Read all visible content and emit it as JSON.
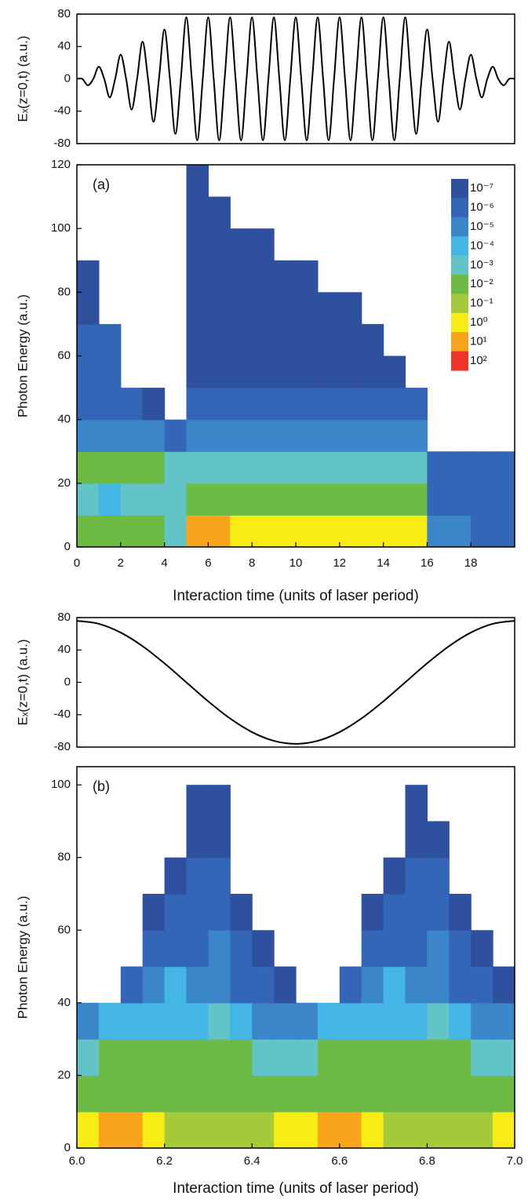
{
  "chart_data": [
    {
      "type": "line",
      "y_label": "Eₓ(z=0,t) (a.u.)",
      "color": "#000000",
      "x": [
        0,
        0.25,
        0.5,
        0.75,
        1,
        1.25,
        1.5,
        1.75,
        2,
        2.25,
        2.5,
        2.75,
        3,
        3.25,
        3.5,
        3.75,
        4,
        4.25,
        4.5,
        4.75,
        5,
        5.25,
        5.5,
        5.75,
        6,
        6.25,
        6.5,
        6.75,
        7,
        7.25,
        7.5,
        7.75,
        8,
        8.25,
        8.5,
        8.75,
        9,
        9.25,
        9.5,
        9.75,
        10,
        10.25,
        10.5,
        10.75,
        11,
        11.25,
        11.5,
        11.75,
        12,
        12.25,
        12.5,
        12.75,
        13,
        13.25,
        13.5,
        13.75,
        14,
        14.25,
        14.5,
        14.75,
        15,
        15.25,
        15.5,
        15.75,
        16,
        16.25,
        16.5,
        16.75,
        17,
        17.25,
        17.5,
        17.75,
        18,
        18.25,
        18.5,
        18.75,
        19,
        19.25,
        19.5,
        19.75,
        20
      ],
      "values": [
        0,
        0,
        -8,
        0,
        15,
        0,
        -23,
        0,
        30,
        0,
        -38,
        0,
        46,
        0,
        -53,
        0,
        61,
        0,
        -68,
        0,
        76,
        0,
        -76,
        0,
        76,
        0,
        -76,
        0,
        76,
        0,
        -76,
        0,
        76,
        0,
        -76,
        0,
        76,
        0,
        -76,
        0,
        76,
        0,
        -76,
        0,
        76,
        0,
        -76,
        0,
        76,
        0,
        -76,
        0,
        76,
        0,
        -76,
        0,
        76,
        0,
        -76,
        0,
        76,
        0,
        -68,
        0,
        61,
        0,
        -53,
        0,
        46,
        0,
        -38,
        0,
        30,
        0,
        -23,
        0,
        15,
        0,
        -8,
        0,
        0
      ],
      "xlim": [
        0,
        20
      ],
      "ylim": [
        -80,
        80
      ],
      "yticks": [
        -80,
        -40,
        0,
        40,
        80
      ]
    },
    {
      "type": "heatmap",
      "annotation": "(a)",
      "y_label": "Photon Energy (a.u.)",
      "x_label": "Interaction time (units of laser period)",
      "xlim": [
        0,
        20
      ],
      "ylim": [
        0,
        120
      ],
      "xticks": [
        0,
        2,
        4,
        6,
        8,
        10,
        12,
        14,
        16,
        18
      ],
      "yticks": [
        0,
        20,
        40,
        60,
        80,
        100,
        120
      ],
      "x_bins": [
        0,
        1,
        2,
        3,
        4,
        5,
        6,
        7,
        8,
        9,
        10,
        11,
        12,
        13,
        14,
        15,
        16,
        17,
        18,
        19,
        20
      ],
      "y_bins": [
        0,
        10,
        20,
        30,
        40,
        50,
        60,
        70,
        80,
        90,
        100,
        110,
        120
      ],
      "z": [
        [
          0.01,
          0.01,
          0.01,
          0.01,
          0.001,
          10,
          10,
          1,
          1,
          1,
          1,
          1,
          1,
          1,
          1,
          1,
          1e-05,
          1e-05,
          1e-06,
          1e-06
        ],
        [
          0.001,
          0.0001,
          0.001,
          0.001,
          0.001,
          0.01,
          0.01,
          0.01,
          0.01,
          0.01,
          0.01,
          0.01,
          0.01,
          0.01,
          0.01,
          0.01,
          1e-06,
          1e-06,
          1e-06,
          1e-06
        ],
        [
          0.01,
          0.01,
          0.01,
          0.01,
          0.001,
          0.001,
          0.001,
          0.001,
          0.001,
          0.001,
          0.001,
          0.001,
          0.001,
          0.001,
          0.001,
          0.001,
          1e-06,
          1e-06,
          1e-06,
          1e-06
        ],
        [
          1e-05,
          1e-05,
          1e-05,
          1e-05,
          1e-06,
          1e-05,
          1e-05,
          1e-05,
          1e-05,
          1e-05,
          1e-05,
          1e-05,
          1e-05,
          1e-05,
          1e-05,
          1e-05,
          null,
          null,
          null,
          null
        ],
        [
          1e-06,
          1e-06,
          1e-06,
          1e-07,
          null,
          1e-06,
          1e-06,
          1e-06,
          1e-06,
          1e-06,
          1e-06,
          1e-06,
          1e-06,
          1e-06,
          1e-06,
          1e-06,
          null,
          null,
          null,
          null
        ],
        [
          1e-06,
          1e-06,
          null,
          null,
          null,
          1e-07,
          1e-07,
          1e-07,
          1e-07,
          1e-07,
          1e-07,
          1e-07,
          1e-07,
          1e-07,
          1e-07,
          null,
          null,
          null,
          null,
          null
        ],
        [
          1e-06,
          1e-06,
          null,
          null,
          null,
          1e-07,
          1e-07,
          1e-07,
          1e-07,
          1e-07,
          1e-07,
          1e-07,
          1e-07,
          1e-07,
          null,
          null,
          null,
          null,
          null,
          null
        ],
        [
          1e-07,
          null,
          null,
          null,
          null,
          1e-07,
          1e-07,
          1e-07,
          1e-07,
          1e-07,
          1e-07,
          1e-07,
          1e-07,
          null,
          null,
          null,
          null,
          null,
          null,
          null
        ],
        [
          1e-07,
          null,
          null,
          null,
          null,
          1e-07,
          1e-07,
          1e-07,
          1e-07,
          1e-07,
          1e-07,
          null,
          null,
          null,
          null,
          null,
          null,
          null,
          null,
          null
        ],
        [
          null,
          null,
          null,
          null,
          null,
          1e-07,
          1e-07,
          1e-07,
          1e-07,
          null,
          null,
          null,
          null,
          null,
          null,
          null,
          null,
          null,
          null,
          null
        ],
        [
          null,
          null,
          null,
          null,
          null,
          1e-07,
          1e-07,
          null,
          null,
          null,
          null,
          null,
          null,
          null,
          null,
          null,
          null,
          null,
          null,
          null
        ],
        [
          null,
          null,
          null,
          null,
          null,
          1e-07,
          null,
          null,
          null,
          null,
          null,
          null,
          null,
          null,
          null,
          null,
          null,
          null,
          null,
          null
        ]
      ],
      "color_levels": [
        {
          "value": 1e-07,
          "label": "10⁻⁷"
        },
        {
          "value": 1e-06,
          "label": "10⁻⁶"
        },
        {
          "value": 1e-05,
          "label": "10⁻⁵"
        },
        {
          "value": 0.0001,
          "label": "10⁻⁴"
        },
        {
          "value": 0.001,
          "label": "10⁻³"
        },
        {
          "value": 0.01,
          "label": "10⁻²"
        },
        {
          "value": 0.1,
          "label": "10⁻¹"
        },
        {
          "value": 1,
          "label": "10⁰"
        },
        {
          "value": 10,
          "label": "10¹"
        },
        {
          "value": 100,
          "label": "10²"
        }
      ],
      "colors": [
        "#2f4f9f",
        "#3466b8",
        "#3a86c8",
        "#44b6e6",
        "#62c4c6",
        "#6dbb45",
        "#a4c93a",
        "#f7ec13",
        "#f8a51b",
        "#ee3424"
      ],
      "colorbar": true
    },
    {
      "type": "line",
      "y_label": "Eₓ(z=0,t) (a.u.)",
      "color": "#000000",
      "x": [
        6,
        6.05,
        6.1,
        6.15,
        6.2,
        6.25,
        6.3,
        6.35,
        6.4,
        6.45,
        6.5,
        6.55,
        6.6,
        6.65,
        6.7,
        6.75,
        6.8,
        6.85,
        6.9,
        6.95,
        7
      ],
      "values": [
        76,
        72.3,
        61.5,
        44.7,
        23.5,
        0,
        -23.5,
        -44.7,
        -61.5,
        -72.3,
        -76,
        -72.3,
        -61.5,
        -44.7,
        -23.5,
        0,
        23.5,
        44.7,
        61.5,
        72.3,
        76
      ],
      "xlim": [
        6,
        7
      ],
      "ylim": [
        -80,
        80
      ],
      "yticks": [
        -80,
        -40,
        0,
        40,
        80
      ]
    },
    {
      "type": "heatmap",
      "annotation": "(b)",
      "y_label": "Photon Energy (a.u.)",
      "x_label": "Interaction time (units of laser period)",
      "xlim": [
        6,
        7
      ],
      "ylim": [
        0,
        105
      ],
      "xticks": [
        {
          "value": 6,
          "label": "6.0"
        },
        {
          "value": 6.2,
          "label": "6.2"
        },
        {
          "value": 6.4,
          "label": "6.4"
        },
        {
          "value": 6.6,
          "label": "6.6"
        },
        {
          "value": 6.8,
          "label": "6.8"
        },
        {
          "value": 7,
          "label": "7.0"
        }
      ],
      "yticks": [
        0,
        20,
        40,
        60,
        80,
        100
      ],
      "x_bins": [
        6,
        6.05,
        6.1,
        6.15,
        6.2,
        6.25,
        6.3,
        6.35,
        6.4,
        6.45,
        6.5,
        6.55,
        6.6,
        6.65,
        6.7,
        6.75,
        6.8,
        6.85,
        6.9,
        6.95,
        7
      ],
      "y_bins": [
        0,
        10,
        20,
        30,
        40,
        50,
        60,
        70,
        80,
        90,
        100
      ],
      "z": [
        [
          1,
          10,
          10,
          1,
          0.1,
          0.1,
          0.1,
          0.1,
          0.1,
          1,
          1,
          10,
          10,
          1,
          0.1,
          0.1,
          0.1,
          0.1,
          0.1,
          1
        ],
        [
          0.01,
          0.01,
          0.01,
          0.01,
          0.01,
          0.01,
          0.01,
          0.01,
          0.01,
          0.01,
          0.01,
          0.01,
          0.01,
          0.01,
          0.01,
          0.01,
          0.01,
          0.01,
          0.01,
          0.01
        ],
        [
          0.001,
          0.01,
          0.01,
          0.01,
          0.01,
          0.01,
          0.01,
          0.01,
          0.001,
          0.001,
          0.001,
          0.01,
          0.01,
          0.01,
          0.01,
          0.01,
          0.01,
          0.01,
          0.001,
          0.001
        ],
        [
          1e-05,
          0.0001,
          0.0001,
          0.0001,
          0.0001,
          0.0001,
          0.001,
          0.0001,
          1e-05,
          1e-05,
          1e-05,
          0.0001,
          0.0001,
          0.0001,
          0.0001,
          0.0001,
          0.001,
          0.0001,
          1e-05,
          1e-05
        ],
        [
          null,
          null,
          1e-06,
          1e-05,
          0.0001,
          1e-05,
          1e-05,
          1e-06,
          1e-06,
          1e-07,
          null,
          null,
          1e-06,
          1e-05,
          0.0001,
          1e-05,
          1e-05,
          1e-06,
          1e-06,
          1e-07
        ],
        [
          null,
          null,
          null,
          1e-06,
          1e-06,
          1e-06,
          1e-05,
          1e-06,
          1e-07,
          null,
          null,
          null,
          null,
          1e-06,
          1e-06,
          1e-06,
          1e-05,
          1e-06,
          1e-07,
          null
        ],
        [
          null,
          null,
          null,
          1e-07,
          1e-06,
          1e-06,
          1e-06,
          1e-07,
          null,
          null,
          null,
          null,
          null,
          1e-07,
          1e-06,
          1e-06,
          1e-06,
          1e-07,
          null,
          null
        ],
        [
          null,
          null,
          null,
          null,
          1e-07,
          1e-06,
          1e-06,
          null,
          null,
          null,
          null,
          null,
          null,
          null,
          1e-07,
          1e-06,
          1e-06,
          null,
          null,
          null
        ],
        [
          null,
          null,
          null,
          null,
          null,
          1e-07,
          1e-07,
          null,
          null,
          null,
          null,
          null,
          null,
          null,
          null,
          1e-07,
          1e-07,
          null,
          null,
          null
        ],
        [
          null,
          null,
          null,
          null,
          null,
          1e-07,
          1e-07,
          null,
          null,
          null,
          null,
          null,
          null,
          null,
          null,
          1e-07,
          null,
          null,
          null,
          null
        ]
      ],
      "color_levels": [
        1e-07,
        1e-06,
        1e-05,
        0.0001,
        0.001,
        0.01,
        0.1,
        1,
        10,
        100
      ],
      "colors": [
        "#2f4f9f",
        "#3466b8",
        "#3a86c8",
        "#44b6e6",
        "#62c4c6",
        "#6dbb45",
        "#a4c93a",
        "#f7ec13",
        "#f8a51b",
        "#ee3424"
      ],
      "colorbar": false
    }
  ]
}
